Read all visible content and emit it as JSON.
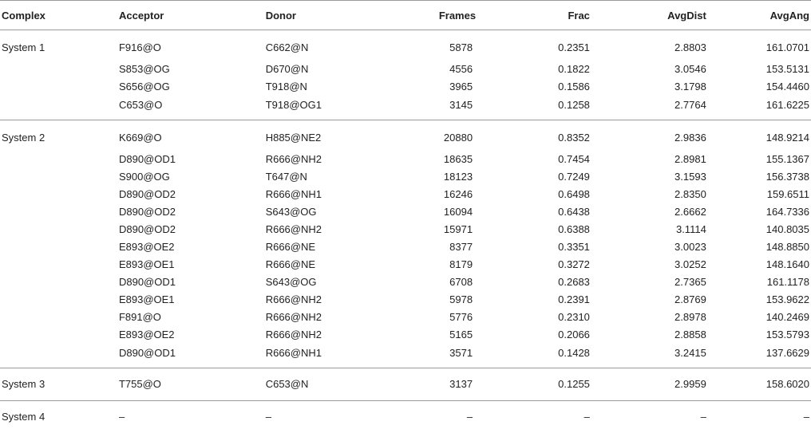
{
  "headers": [
    "Complex",
    "Acceptor",
    "Donor",
    "Frames",
    "Frac",
    "AvgDist",
    "AvgAng"
  ],
  "groups": [
    {
      "complex": "System 1",
      "rows": [
        [
          "F916@O",
          "C662@N",
          "5878",
          "0.2351",
          "2.8803",
          "161.0701"
        ],
        [
          "S853@OG",
          "D670@N",
          "4556",
          "0.1822",
          "3.0546",
          "153.5131"
        ],
        [
          "S656@OG",
          "T918@N",
          "3965",
          "0.1586",
          "3.1798",
          "154.4460"
        ],
        [
          "C653@O",
          "T918@OG1",
          "3145",
          "0.1258",
          "2.7764",
          "161.6225"
        ]
      ]
    },
    {
      "complex": "System 2",
      "rows": [
        [
          "K669@O",
          "H885@NE2",
          "20880",
          "0.8352",
          "2.9836",
          "148.9214"
        ],
        [
          "D890@OD1",
          "R666@NH2",
          "18635",
          "0.7454",
          "2.8981",
          "155.1367"
        ],
        [
          "S900@OG",
          "T647@N",
          "18123",
          "0.7249",
          "3.1593",
          "156.3738"
        ],
        [
          "D890@OD2",
          "R666@NH1",
          "16246",
          "0.6498",
          "2.8350",
          "159.6511"
        ],
        [
          "D890@OD2",
          "S643@OG",
          "16094",
          "0.6438",
          "2.6662",
          "164.7336"
        ],
        [
          "D890@OD2",
          "R666@NH2",
          "15971",
          "0.6388",
          "3.1114",
          "140.8035"
        ],
        [
          "E893@OE2",
          "R666@NE",
          "8377",
          "0.3351",
          "3.0023",
          "148.8850"
        ],
        [
          "E893@OE1",
          "R666@NE",
          "8179",
          "0.3272",
          "3.0252",
          "148.1640"
        ],
        [
          "D890@OD1",
          "S643@OG",
          "6708",
          "0.2683",
          "2.7365",
          "161.1178"
        ],
        [
          "E893@OE1",
          "R666@NH2",
          "5978",
          "0.2391",
          "2.8769",
          "153.9622"
        ],
        [
          "F891@O",
          "R666@NH2",
          "5776",
          "0.2310",
          "2.8978",
          "140.2469"
        ],
        [
          "E893@OE2",
          "R666@NH2",
          "5165",
          "0.2066",
          "2.8858",
          "153.5793"
        ],
        [
          "D890@OD1",
          "R666@NH1",
          "3571",
          "0.1428",
          "3.2415",
          "137.6629"
        ]
      ]
    },
    {
      "complex": "System 3",
      "rows": [
        [
          "T755@O",
          "C653@N",
          "3137",
          "0.1255",
          "2.9959",
          "158.6020"
        ]
      ]
    },
    {
      "complex": "System 4",
      "rows": [
        [
          "–",
          "–",
          "–",
          "–",
          "–",
          "–"
        ]
      ]
    }
  ]
}
